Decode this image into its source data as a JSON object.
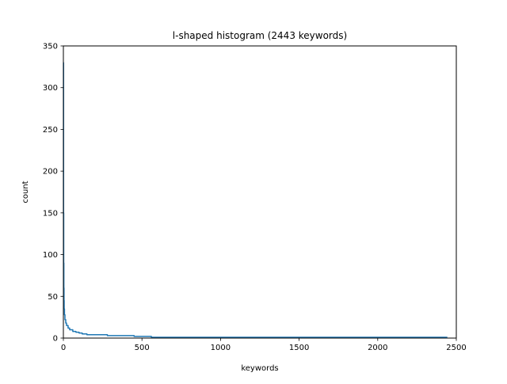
{
  "chart_data": {
    "type": "line",
    "title": "l-shaped histogram (2443 keywords)",
    "xlabel": "keywords",
    "ylabel": "count",
    "xlim": [
      0,
      2500
    ],
    "ylim": [
      0,
      350
    ],
    "xticks": [
      0,
      500,
      1000,
      1500,
      2000,
      2500
    ],
    "yticks": [
      0,
      50,
      100,
      150,
      200,
      250,
      300,
      350
    ],
    "xtick_labels": [
      "0",
      "500",
      "1000",
      "1500",
      "2000",
      "2500"
    ],
    "ytick_labels": [
      "0",
      "50",
      "100",
      "150",
      "200",
      "250",
      "300",
      "350"
    ],
    "grid": false,
    "series": [
      {
        "color": "#1f77b4",
        "x": [
          0,
          1,
          2,
          3,
          4,
          5,
          7,
          10,
          15,
          20,
          30,
          40,
          60,
          80,
          100,
          120,
          150,
          200,
          280,
          350,
          450,
          560,
          700,
          1000,
          1500,
          2000,
          2443
        ],
        "y": [
          330,
          150,
          90,
          60,
          45,
          35,
          28,
          22,
          18,
          15,
          12,
          10,
          8,
          7,
          6,
          5,
          4,
          4,
          3,
          3,
          2,
          1,
          1,
          1,
          1,
          1,
          1
        ]
      }
    ]
  }
}
